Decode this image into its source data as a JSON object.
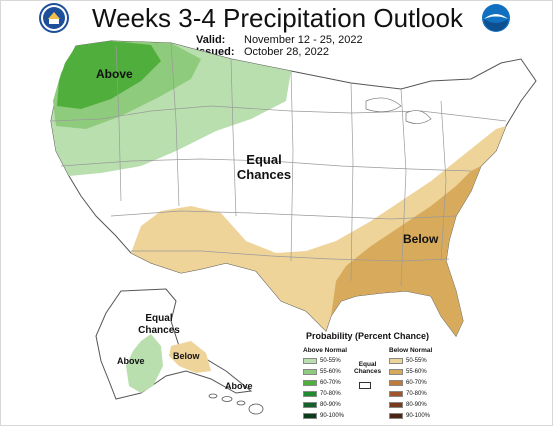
{
  "header": {
    "title": "Weeks 3-4 Precipitation Outlook",
    "valid_label": "Valid:",
    "valid_value": "November 12 - 25, 2022",
    "issued_label": "Issued:",
    "issued_value": "October 28, 2022",
    "noaa_label": "NOAA"
  },
  "map": {
    "above_label": "Above",
    "equal_label_line1": "Equal",
    "equal_label_line2": "Chances",
    "below_label": "Below",
    "alaska_equal_line1": "Equal",
    "alaska_equal_line2": "Chances",
    "alaska_above": "Above",
    "alaska_below": "Below",
    "hawaii_above": "Above"
  },
  "legend": {
    "title": "Probability (Percent Chance)",
    "above_header": "Above Normal",
    "below_header": "Below Normal",
    "equal_line1": "Equal",
    "equal_line2": "Chances",
    "above_items": [
      {
        "label": "50-55%",
        "color": "#b9dfaf"
      },
      {
        "label": "55-60%",
        "color": "#8fcb7c"
      },
      {
        "label": "60-70%",
        "color": "#4fae3c"
      },
      {
        "label": "70-80%",
        "color": "#1f8a2e"
      },
      {
        "label": "80-90%",
        "color": "#14612a"
      },
      {
        "label": "90-100%",
        "color": "#0b3b19"
      }
    ],
    "below_items": [
      {
        "label": "50-55%",
        "color": "#efd49a"
      },
      {
        "label": "55-60%",
        "color": "#d8aa5c"
      },
      {
        "label": "60-70%",
        "color": "#c07a3c"
      },
      {
        "label": "70-80%",
        "color": "#a0552a"
      },
      {
        "label": "80-90%",
        "color": "#7a3b1d"
      },
      {
        "label": "90-100%",
        "color": "#4a2414"
      }
    ]
  },
  "colors": {
    "above_light": "#b9dfaf",
    "above_mid": "#8fcb7c",
    "above_dark": "#4fae3c",
    "below_light": "#efd49a",
    "below_mid": "#d8aa5c",
    "state_lines": "#9a9a9a"
  }
}
